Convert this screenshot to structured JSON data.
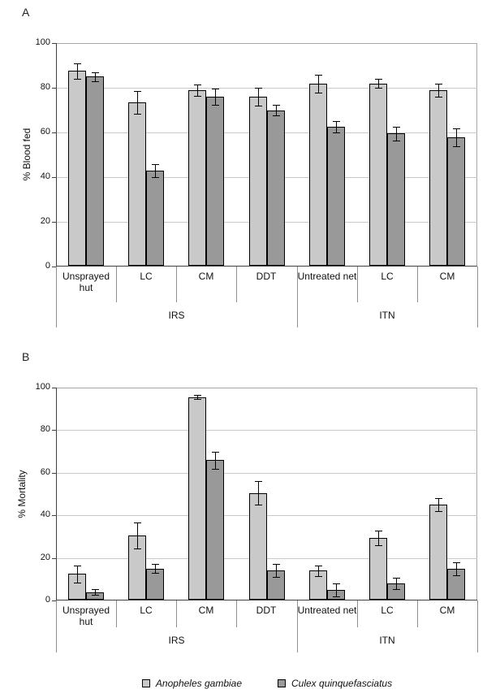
{
  "figure": {
    "panels": [
      {
        "label": "A"
      },
      {
        "label": "B"
      }
    ],
    "colors": {
      "bar_light": "#c9c9c9",
      "bar_dark": "#999999",
      "bar_border": "#000000",
      "gridline": "#c9c9c9",
      "axis": "#404040",
      "frame": "#a8a8a8"
    },
    "legend": [
      {
        "name": "Anopheles gambiae",
        "color": "#c9c9c9"
      },
      {
        "name": "Culex quinquefasciatus",
        "color": "#999999"
      }
    ]
  },
  "chart_data": [
    {
      "type": "bar",
      "panel": "A",
      "title": "",
      "xlabel": "",
      "ylabel": "% Blood fed",
      "ylim": [
        0,
        100
      ],
      "yticks": [
        0,
        20,
        40,
        60,
        80,
        100
      ],
      "grid": true,
      "legend_position": "none",
      "categories": [
        "Unsprayed hut",
        "LC",
        "CM",
        "DDT",
        "Untreated net",
        "LC",
        "CM"
      ],
      "category_groups": [
        {
          "label": "IRS",
          "span": 4
        },
        {
          "label": "ITN",
          "span": 3
        }
      ],
      "series": [
        {
          "name": "Anopheles gambiae",
          "color": "#c9c9c9",
          "values": [
            87.5,
            73.5,
            79,
            76,
            82,
            82,
            79
          ],
          "errors": [
            3.5,
            5,
            2.5,
            4,
            4,
            2,
            3
          ]
        },
        {
          "name": "Culex quinquefasciatus",
          "color": "#999999",
          "values": [
            85,
            43,
            76,
            70,
            62.5,
            59.5,
            58
          ],
          "errors": [
            2,
            3,
            3.5,
            2.5,
            2.5,
            3,
            4
          ]
        }
      ]
    },
    {
      "type": "bar",
      "panel": "B",
      "title": "",
      "xlabel": "",
      "ylabel": "% Mortality",
      "ylim": [
        0,
        100
      ],
      "yticks": [
        0,
        20,
        40,
        60,
        80,
        100
      ],
      "grid": true,
      "legend_position": "bottom",
      "categories": [
        "Unsprayed hut",
        "LC",
        "CM",
        "DDT",
        "Untreated net",
        "LC",
        "CM"
      ],
      "category_groups": [
        {
          "label": "IRS",
          "span": 4
        },
        {
          "label": "ITN",
          "span": 3
        }
      ],
      "series": [
        {
          "name": "Anopheles gambiae",
          "color": "#c9c9c9",
          "values": [
            12.5,
            30.5,
            95.5,
            50.5,
            14,
            29.5,
            45
          ],
          "errors": [
            4,
            6,
            1,
            5.5,
            2.5,
            3.5,
            3
          ]
        },
        {
          "name": "Culex quinquefasciatus",
          "color": "#999999",
          "values": [
            4,
            15,
            66,
            14,
            5,
            8,
            15
          ],
          "errors": [
            1.5,
            2,
            4,
            3,
            3,
            2.5,
            3
          ]
        }
      ]
    }
  ]
}
